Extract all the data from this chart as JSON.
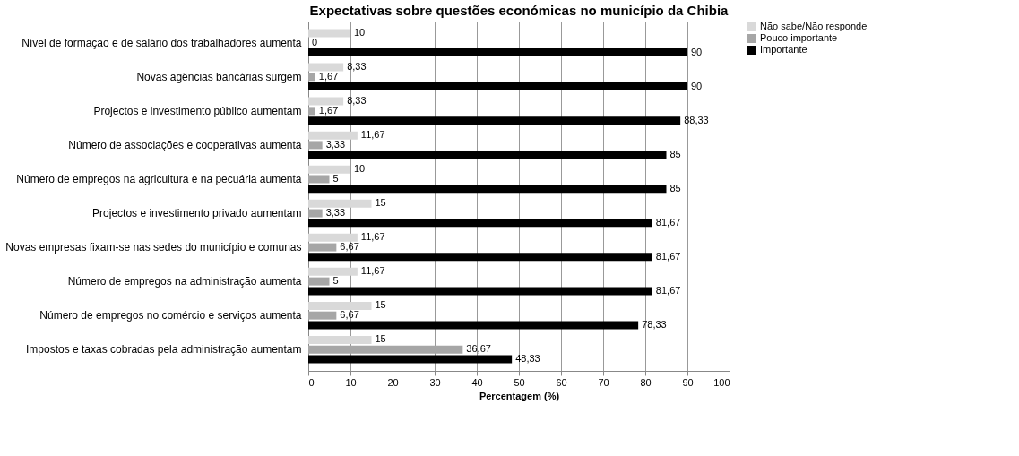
{
  "chart_data": {
    "type": "bar",
    "orientation": "horizontal",
    "title": "Expectativas sobre questões económicas no município da Chibia",
    "xlabel": "Percentagem (%)",
    "categories": [
      "Nível de formação e de salário dos trabalhadores aumenta",
      "Novas agências bancárias surgem",
      "Projectos e investimento público aumentam",
      "Número de associações e cooperativas aumenta",
      "Número de empregos na agricultura e na pecuária aumenta",
      "Projectos e investimento privado aumentam",
      "Novas empresas fixam-se nas sedes do município e comunas",
      "Número de empregos na administração aumenta",
      "Número de empregos no comércio e serviços aumenta",
      "Impostos e taxas cobradas pela administração aumentam"
    ],
    "series": [
      {
        "name": "Não sabe/Não responde",
        "color": "#d9d9d9",
        "values": [
          10,
          8.33,
          8.33,
          11.67,
          10,
          15,
          11.67,
          11.67,
          15,
          15
        ],
        "value_labels": [
          "10",
          "8,33",
          "8,33",
          "11,67",
          "10",
          "15",
          "11,67",
          "11,67",
          "15",
          "15"
        ]
      },
      {
        "name": "Pouco importante",
        "color": "#a6a6a6",
        "values": [
          0,
          1.67,
          1.67,
          3.33,
          5,
          3.33,
          6.67,
          5,
          6.67,
          36.67
        ],
        "value_labels": [
          "0",
          "1,67",
          "1,67",
          "3,33",
          "5",
          "3,33",
          "6,67",
          "5",
          "6,67",
          "36,67"
        ]
      },
      {
        "name": "Importante",
        "color": "#000000",
        "values": [
          90,
          90,
          88.33,
          85,
          85,
          81.67,
          81.67,
          81.67,
          78.33,
          48.33
        ],
        "value_labels": [
          "90",
          "90",
          "88,33",
          "85",
          "85",
          "81,67",
          "81,67",
          "81,67",
          "78,33",
          "48,33"
        ]
      }
    ],
    "xlim": [
      0,
      100
    ],
    "xticks": [
      0,
      10,
      20,
      30,
      40,
      50,
      60,
      70,
      80,
      90,
      100
    ],
    "grid": "x",
    "legend": "right"
  }
}
